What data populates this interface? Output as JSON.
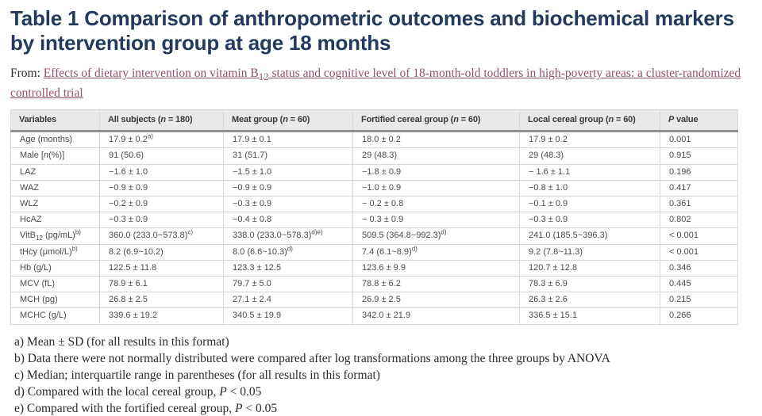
{
  "header": {
    "title_lines": [
      "Table 1 Comparison of anthropometric outcomes and biochemical markers",
      "by intervention group at age 18 months"
    ],
    "source_prefix": "From:",
    "source_link_text": "Effects of dietary intervention on vitamin B_{12} status and cognitive level of 18-month-old toddlers in high-poverty areas: a cluster-randomized controlled trial"
  },
  "table": {
    "columns": [
      "Variables",
      "All subjects (*n* = 180)",
      "Meat group (*n* = 60)",
      "Fortified cereal group (*n* = 60)",
      "Local cereal group (*n* = 60)",
      "*P* value"
    ],
    "rows": [
      [
        "Age (months)",
        "17.9 ± 0.2^{a)}",
        "17.9 ± 0.1",
        "18.0 ± 0.2",
        "17.9 ± 0.2",
        "0.001"
      ],
      [
        "Male [*n*(%)]",
        "91 (50.6)",
        "31 (51.7)",
        "29 (48.3)",
        "29 (48.3)",
        "0.915"
      ],
      [
        "LAZ",
        "−1.6 ± 1.0",
        "−1.5 ± 1.0",
        "−1.8 ± 0.9",
        "− 1.6 ± 1.1",
        "0.196"
      ],
      [
        "WAZ",
        "−0.9 ± 0.9",
        "−0.9 ± 0.9",
        "−1.0 ± 0.9",
        "−0.8 ± 1.0",
        "0.417"
      ],
      [
        "WLZ",
        "−0.2 ± 0.9",
        "−0.3 ± 0.9",
        "− 0.2 ± 0.8",
        "−0.1 ± 0.9",
        "0.361"
      ],
      [
        "HcAZ",
        "−0.3 ± 0.9",
        "−0.4 ± 0.8",
        "− 0.3 ± 0.9",
        "−0.3 ± 0.9",
        "0.802"
      ],
      [
        "VitB_{12} (pg/mL)^{b)}",
        "360.0 (233.0~573.8)^{c)}",
        "338.0 (233.0~578.3)^{d)e)}",
        "509.5 (364.8~992.3)^{d)}",
        "241.0 (185.5~396.3)",
        "< 0.001"
      ],
      [
        "tHcy (μmol/L)^{b)}",
        "8.2 (6.9~10.2)",
        "8.0 (6.6~10.3)^{d)}",
        "7.4 (6.1~8.9)^{d)}",
        "9.2 (7.8~11.3)",
        "< 0.001"
      ],
      [
        "Hb (g/L)",
        "122.5 ± 11.8",
        "123.3 ± 12.5",
        "123.6 ± 9.9",
        "120.7 ± 12.8",
        "0.346"
      ],
      [
        "MCV (fL)",
        "78.9 ± 6.1",
        "79.7 ± 5.0",
        "78.8 ± 6.2",
        "78.3 ± 6.9",
        "0.445"
      ],
      [
        "MCH (pg)",
        "26.8 ± 2.5",
        "27.1 ± 2.4",
        "26.9 ± 2.5",
        "26.3 ± 2.6",
        "0.215"
      ],
      [
        "MCHC (g/L)",
        "339.6 ± 19.2",
        "340.5 ± 19.9",
        "342.0 ± 21.9",
        "336.5 ± 15.1",
        "0.266"
      ]
    ]
  },
  "footnotes": [
    "a) Mean ± SD (for all results in this format)",
    "b) Data there were not normally distributed were compared after log transformations among the three groups by ANOVA",
    "c) Median; interquartile range in parentheses (for all results in this format)",
    "d) Compared with the local cereal group, *P* < 0.05",
    "e) Compared with the fortified cereal group, *P* < 0.05"
  ],
  "colors": {
    "title_text": "#24395e",
    "link_text": "#96506f",
    "table_text": "#4b4b4b",
    "header_background": "#e9e9e9",
    "cell_border": "#d8d8d8",
    "header_rule": "#8f8f8f"
  }
}
